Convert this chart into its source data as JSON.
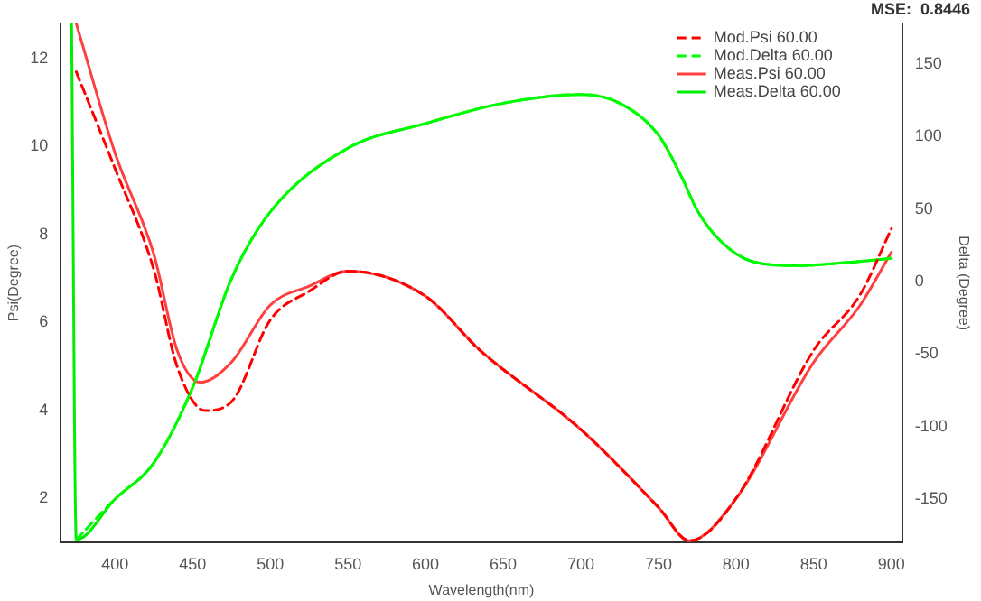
{
  "chart_data": {
    "type": "line",
    "xlabel": "Wavelength(nm)",
    "ylabel": "Psi(Degree)",
    "y2label": "Delta (Degree)",
    "annotations": [
      "MSE:  0.8446"
    ],
    "xlim": [
      365,
      907
    ],
    "xticks": [
      400,
      450,
      500,
      550,
      600,
      650,
      700,
      750,
      800,
      850,
      900
    ],
    "ylim": [
      1,
      12.8
    ],
    "yticks": [
      2,
      4,
      6,
      8,
      10,
      12
    ],
    "y2lim": [
      -180,
      178
    ],
    "y2ticks": [
      -150,
      -100,
      -50,
      0,
      50,
      100,
      150
    ],
    "grid": false,
    "legend": "top right",
    "marker": "none",
    "series": [
      {
        "name": "Mod.Psi 60.00",
        "color": "#ff0000",
        "line_style": "dashed",
        "x": [
          375,
          400,
          425,
          440,
          458,
          475,
          500,
          525,
          550,
          600,
          635,
          700,
          750,
          770,
          800,
          850,
          880,
          900
        ],
        "values": [
          11.7,
          9.5,
          7.2,
          5.0,
          4.0,
          4.2,
          6.06,
          6.71,
          7.17,
          6.6,
          5.37,
          3.57,
          1.8,
          1.04,
          2.0,
          5.37,
          6.64,
          8.13
        ]
      },
      {
        "name": "Mod.Delta 60.00",
        "color": "#00ff00",
        "axis": "y2",
        "line_style": "dashed",
        "x": [
          375,
          400,
          425,
          450,
          475,
          500,
          550,
          600,
          650,
          700,
          725,
          750,
          765,
          775,
          790,
          810,
          840,
          870,
          900
        ],
        "values": [
          -178,
          -150,
          -125,
          -73,
          2,
          48,
          92,
          109,
          123,
          129,
          123,
          101,
          72,
          49,
          28,
          14,
          11,
          13,
          16
        ]
      },
      {
        "name": "Meas.Psi 60.00",
        "color": "#ff4040",
        "line_style": "solid",
        "x": [
          375,
          400,
          425,
          440,
          455,
          475,
          500,
          525,
          550,
          600,
          635,
          700,
          750,
          770,
          800,
          850,
          880,
          900
        ],
        "values": [
          12.8,
          9.85,
          7.55,
          5.37,
          4.64,
          5.1,
          6.4,
          6.83,
          7.17,
          6.6,
          5.37,
          3.57,
          1.8,
          1.04,
          2.0,
          5.1,
          6.4,
          7.6
        ]
      },
      {
        "name": "Meas.Delta 60.00",
        "color": "#00ee00",
        "axis": "y2",
        "line_style": "solid",
        "x": [
          372,
          375,
          400,
          425,
          450,
          475,
          500,
          550,
          600,
          650,
          700,
          725,
          750,
          765,
          775,
          790,
          810,
          840,
          870,
          900
        ],
        "values": [
          178,
          -178,
          -150,
          -125,
          -73,
          2,
          48,
          92,
          109,
          123,
          129,
          123,
          101,
          72,
          49,
          28,
          14,
          11,
          13,
          16
        ]
      }
    ]
  }
}
